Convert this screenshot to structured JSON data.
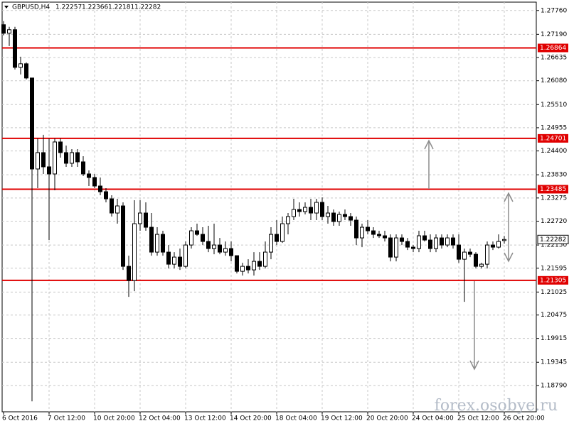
{
  "chart_data": {
    "type": "candlestick",
    "title": "GBPUSD,H4",
    "watermark": "forex.osobye.ru",
    "categories": [
      "6 Oct 2016",
      null,
      null,
      null,
      null,
      null,
      null,
      null,
      "7 Oct 12:00",
      null,
      null,
      null,
      null,
      null,
      null,
      null,
      "10 Oct 20:00",
      null,
      null,
      null,
      null,
      null,
      null,
      null,
      "12 Oct 04:00",
      null,
      null,
      null,
      null,
      null,
      null,
      null,
      "13 Oct 12:00",
      null,
      null,
      null,
      null,
      null,
      null,
      null,
      "14 Oct 20:00",
      null,
      null,
      null,
      null,
      null,
      null,
      null,
      "18 Oct 04:00",
      null,
      null,
      null,
      null,
      null,
      null,
      null,
      "19 Oct 12:00",
      null,
      null,
      null,
      null,
      null,
      null,
      null,
      "20 Oct 20:00",
      null,
      null,
      null,
      null,
      null,
      null,
      null,
      "24 Oct 04:00",
      null,
      null,
      null,
      null,
      null,
      null,
      null,
      "25 Oct 12:00",
      null,
      null,
      null,
      null,
      null,
      null,
      null,
      "26 Oct 20:00"
    ],
    "candles": [
      [
        1.2742,
        1.27505,
        1.27165,
        1.27216
      ],
      [
        1.27216,
        1.27369,
        1.2691,
        1.27301
      ],
      [
        1.27301,
        1.27369,
        1.26349,
        1.264
      ],
      [
        1.264,
        1.26655,
        1.2623,
        1.26485
      ],
      [
        1.26485,
        1.26519,
        1.26111,
        1.26145
      ],
      [
        1.26145,
        1.26145,
        1.1841,
        1.23969
      ],
      [
        1.23969,
        1.247,
        1.2351,
        1.2436
      ],
      [
        1.2436,
        1.24785,
        1.2385,
        1.2402
      ],
      [
        1.2402,
        1.247,
        1.22269,
        1.2385
      ],
      [
        1.2385,
        1.247,
        1.23459,
        1.24615
      ],
      [
        1.24615,
        1.247,
        1.24241,
        1.2436
      ],
      [
        1.2436,
        1.2453,
        1.2402,
        1.24105
      ],
      [
        1.24105,
        1.24445,
        1.2402,
        1.2436
      ],
      [
        1.2436,
        1.24445,
        1.2402,
        1.24139
      ],
      [
        1.24139,
        1.24275,
        1.23799,
        1.2385
      ],
      [
        1.2385,
        1.23935,
        1.23561,
        1.23765
      ],
      [
        1.23765,
        1.2385,
        1.2351,
        1.23561
      ],
      [
        1.23561,
        1.23765,
        1.2334,
        1.23425
      ],
      [
        1.23425,
        1.2351,
        1.2317,
        1.23255
      ],
      [
        1.23255,
        1.2334,
        1.2283,
        1.22915
      ],
      [
        1.22915,
        1.23255,
        1.2266,
        1.23085
      ],
      [
        1.23085,
        1.2317,
        1.21555,
        1.2164
      ],
      [
        1.2164,
        1.21895,
        1.20909,
        1.213
      ],
      [
        1.213,
        1.23221,
        1.21045,
        1.2266
      ],
      [
        1.2266,
        1.23221,
        1.2249,
        1.22915
      ],
      [
        1.22915,
        1.2317,
        1.2249,
        1.22575
      ],
      [
        1.22575,
        1.22915,
        1.21895,
        1.2198
      ],
      [
        1.2198,
        1.22575,
        1.21895,
        1.22405
      ],
      [
        1.22405,
        1.2249,
        1.21895,
        1.2198
      ],
      [
        1.2198,
        1.2215,
        1.21589,
        1.21691
      ],
      [
        1.21691,
        1.2198,
        1.21589,
        1.21861
      ],
      [
        1.21861,
        1.22065,
        1.21555,
        1.2164
      ],
      [
        1.2164,
        1.22235,
        1.21589,
        1.2215
      ],
      [
        1.2215,
        1.22575,
        1.22065,
        1.2249
      ],
      [
        1.2249,
        1.2266,
        1.22371,
        1.22405
      ],
      [
        1.22405,
        1.22575,
        1.2215,
        1.22235
      ],
      [
        1.22235,
        1.22609,
        1.2198,
        1.22065
      ],
      [
        1.22065,
        1.2266,
        1.21929,
        1.2215
      ],
      [
        1.2215,
        1.2232,
        1.21929,
        1.2198
      ],
      [
        1.2198,
        1.22235,
        1.21895,
        1.22065
      ],
      [
        1.22065,
        1.22235,
        1.21759,
        1.21895
      ],
      [
        1.21895,
        1.21895,
        1.2147,
        1.21521
      ],
      [
        1.21521,
        1.21725,
        1.21419,
        1.2164
      ],
      [
        1.2164,
        1.2181,
        1.2147,
        1.21555
      ],
      [
        1.21555,
        1.2198,
        1.21419,
        1.21759
      ],
      [
        1.21759,
        1.2198,
        1.21555,
        1.2164
      ],
      [
        1.2164,
        1.22235,
        1.21589,
        1.2198
      ],
      [
        1.2198,
        1.22575,
        1.2181,
        1.22405
      ],
      [
        1.22405,
        1.22745,
        1.2215,
        1.22235
      ],
      [
        1.22235,
        1.2283,
        1.22201,
        1.2266
      ],
      [
        1.2266,
        1.22915,
        1.22405,
        1.2283
      ],
      [
        1.2283,
        1.23255,
        1.22745,
        1.23
      ],
      [
        1.23,
        1.2317,
        1.2283,
        1.22949
      ],
      [
        1.22949,
        1.2317,
        1.22881,
        1.23051
      ],
      [
        1.23051,
        1.23255,
        1.22745,
        1.22915
      ],
      [
        1.22915,
        1.23255,
        1.22745,
        1.2317
      ],
      [
        1.2317,
        1.23289,
        1.22745,
        1.2283
      ],
      [
        1.2283,
        1.23085,
        1.2266,
        1.22915
      ],
      [
        1.22915,
        1.23,
        1.22609,
        1.22711
      ],
      [
        1.22711,
        1.22949,
        1.22609,
        1.22881
      ],
      [
        1.22881,
        1.23,
        1.22745,
        1.2283
      ],
      [
        1.2283,
        1.22915,
        1.22609,
        1.22745
      ],
      [
        1.22745,
        1.2283,
        1.2215,
        1.2232
      ],
      [
        1.2232,
        1.2266,
        1.22099,
        1.22575
      ],
      [
        1.22575,
        1.22745,
        1.22405,
        1.2249
      ],
      [
        1.2249,
        1.22575,
        1.2232,
        1.22405
      ],
      [
        1.22405,
        1.2249,
        1.2232,
        1.22371
      ],
      [
        1.22371,
        1.2249,
        1.22235,
        1.2232
      ],
      [
        1.2232,
        1.22405,
        1.21759,
        1.21861
      ],
      [
        1.21861,
        1.22405,
        1.21759,
        1.2232
      ],
      [
        1.2232,
        1.22405,
        1.2215,
        1.22235
      ],
      [
        1.22235,
        1.2232,
        1.22031,
        1.22099
      ],
      [
        1.22099,
        1.2215,
        1.2198,
        1.22065
      ],
      [
        1.22065,
        1.2249,
        1.2198,
        1.22371
      ],
      [
        1.22371,
        1.2249,
        1.22235,
        1.22269
      ],
      [
        1.22269,
        1.22405,
        1.2198,
        1.22065
      ],
      [
        1.22065,
        1.22405,
        1.2198,
        1.2232
      ],
      [
        1.2232,
        1.22405,
        1.22065,
        1.2215
      ],
      [
        1.2215,
        1.22405,
        1.22099,
        1.2232
      ],
      [
        1.2232,
        1.22405,
        1.22065,
        1.2215
      ],
      [
        1.2215,
        1.22405,
        1.21725,
        1.2181
      ],
      [
        1.2181,
        1.22065,
        1.2079,
        1.2198
      ],
      [
        1.2198,
        1.22065,
        1.21861,
        1.21929
      ],
      [
        1.21929,
        1.2198,
        1.21589,
        1.2164
      ],
      [
        1.2164,
        1.21725,
        1.21589,
        1.21691
      ],
      [
        1.21691,
        1.22235,
        1.21589,
        1.2215
      ],
      [
        1.2215,
        1.22235,
        1.22031,
        1.22099
      ],
      [
        1.22099,
        1.22405,
        1.22065,
        1.22235
      ],
      [
        1.22257,
        1.22366,
        1.22181,
        1.22282
      ]
    ],
    "levels": [
      1.26864,
      1.24701,
      1.23485,
      1.21305
    ],
    "level_color": "#e00000",
    "ylim": [
      1.1816,
      1.2796
    ],
    "yticks": [
      {
        "value": 1.2776,
        "label": "1.27760"
      },
      {
        "value": 1.2719,
        "label": "1.27190"
      },
      1.26635,
      {
        "value": 1.2608,
        "label": "1.26080"
      },
      {
        "value": 1.2551,
        "label": "1.25510"
      },
      1.24955,
      {
        "value": 1.244,
        "label": "1.24400"
      },
      {
        "value": 1.2383,
        "label": "1.23830"
      },
      1.23275,
      {
        "value": 1.2272,
        "label": "1.22720"
      },
      {
        "value": 1.2215,
        "label": "1.22150"
      },
      1.21595,
      1.21025,
      1.20475,
      1.19915,
      1.19345,
      {
        "value": 1.1879,
        "label": "1.18790"
      }
    ],
    "grid": true
  }
}
